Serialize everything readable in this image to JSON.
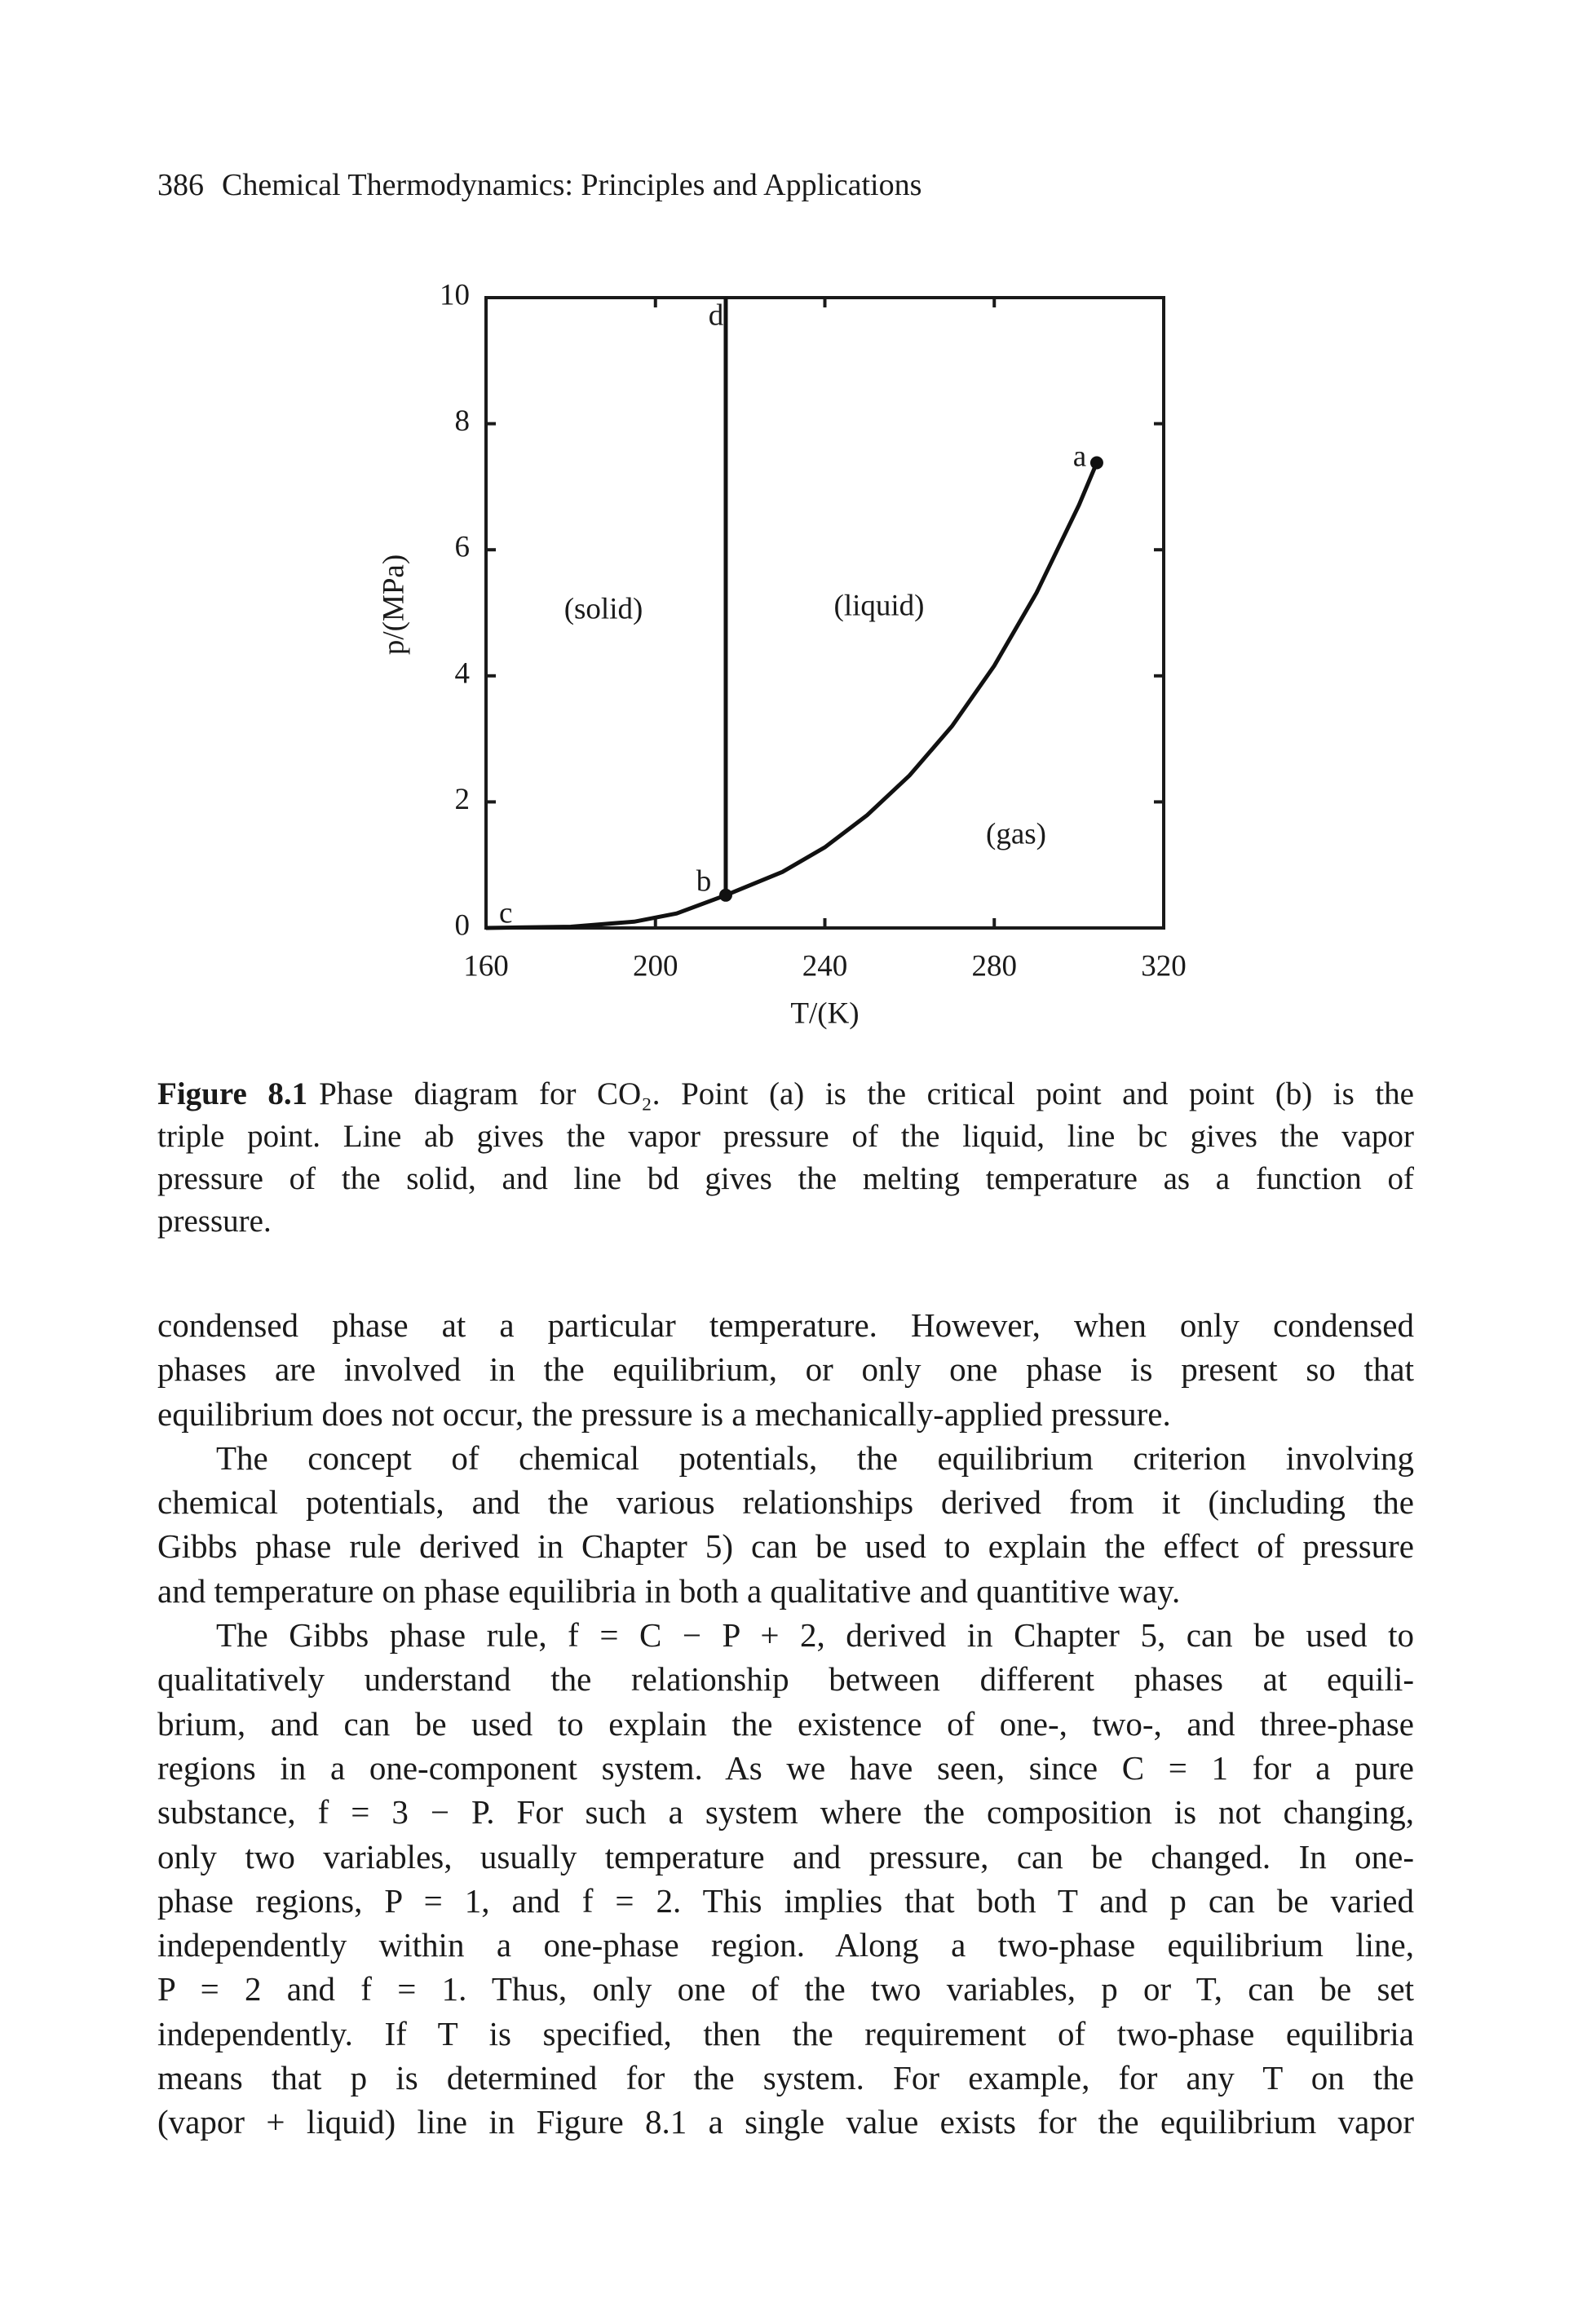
{
  "header": {
    "page_number": "386",
    "title": "Chemical Thermodynamics: Principles and Applications"
  },
  "chart_data": {
    "type": "line",
    "xlabel": "T/(K)",
    "ylabel": "p/(MPa)",
    "xlim": [
      160,
      320
    ],
    "xticks": [
      160,
      200,
      240,
      280,
      320
    ],
    "ylim": [
      0,
      10
    ],
    "yticks": [
      0,
      2,
      4,
      6,
      8,
      10
    ],
    "grid": false,
    "series": [
      {
        "color": "#111111",
        "x": [
          216.6,
          230,
          240,
          250,
          260,
          270,
          280,
          290,
          300,
          304.2
        ],
        "values": [
          0.52,
          0.89,
          1.28,
          1.79,
          2.42,
          3.2,
          4.16,
          5.32,
          6.71,
          7.38
        ]
      },
      {
        "color": "#111111",
        "x": [
          160,
          180,
          195,
          205,
          216.6
        ],
        "values": [
          0.0,
          0.02,
          0.1,
          0.23,
          0.52
        ]
      },
      {
        "color": "#111111",
        "x": [
          216.6,
          216.6
        ],
        "values": [
          0.52,
          10
        ]
      }
    ],
    "annotations": [
      "a",
      "b",
      "c",
      "d",
      "(solid)",
      "(liquid)",
      "(gas)"
    ]
  },
  "caption": {
    "label": "Figure 8.1",
    "lines": [
      "Phase diagram for CO₂. Point (a) is the critical point and point (b) is the",
      "triple point. Line ab gives the vapor pressure of the liquid, line bc gives the vapor",
      "pressure of the solid, and line bd gives the melting temperature as a function of",
      "pressure."
    ]
  },
  "body": {
    "paragraphs": [
      [
        "condensed phase at a particular temperature. However, when only condensed",
        "phases are involved in the equilibrium, or only one phase is present so that",
        "equilibrium does not occur, the pressure is a mechanically-applied pressure."
      ],
      [
        "The concept of chemical potentials, the equilibrium criterion involving",
        "chemical potentials, and the various relationships derived from it (including the",
        "Gibbs phase rule derived in Chapter 5) can be used to explain the effect of pressure",
        "and temperature on phase equilibria in both a qualitative and quantitive way."
      ],
      [
        "The Gibbs phase rule, f = C − P + 2, derived in Chapter 5, can be used to",
        "qualitatively understand the relationship between different phases at equili-",
        "brium, and can be used to explain the existence of one-, two-, and three-phase",
        "regions in a one-component system. As we have seen, since C = 1 for a pure",
        "substance, f = 3 − P. For such a system where the composition is not changing,",
        "only two variables, usually temperature and pressure, can be changed. In one-",
        "phase regions, P = 1, and f = 2. This implies that both T and p can be varied",
        "independently within a one-phase region. Along a two-phase equilibrium line,",
        "P = 2 and f = 1. Thus, only one of the two variables, p or T, can be set",
        "independently. If T is specified, then the requirement of two-phase equilibria",
        "means that p is determined for the system. For example, for any T on the",
        "(vapor + liquid) line in Figure 8.1 a single value exists for the equilibrium vapor"
      ]
    ]
  }
}
